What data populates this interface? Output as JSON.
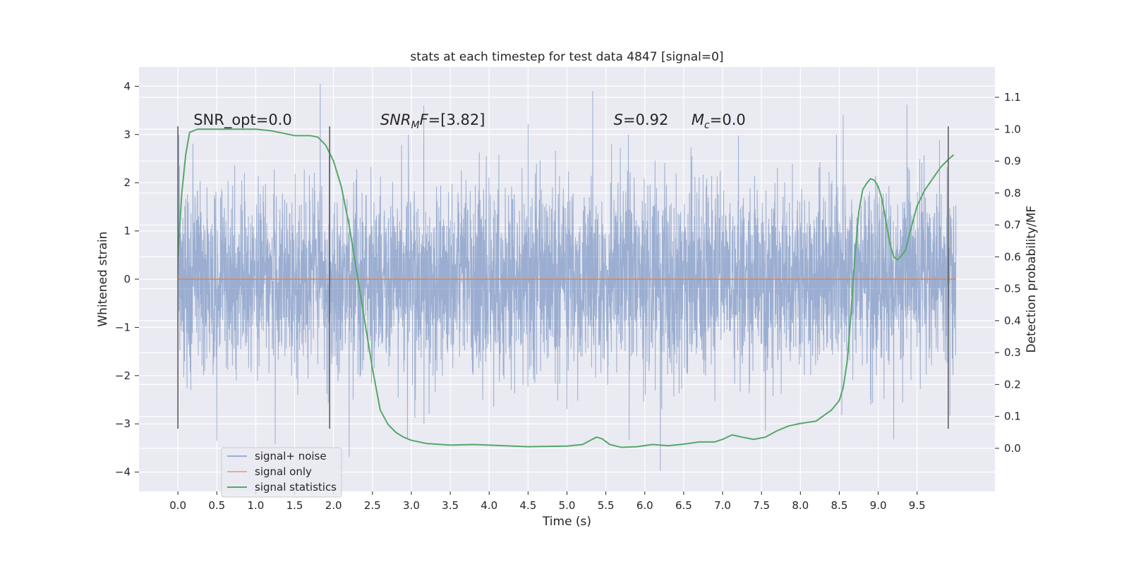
{
  "chart_data": {
    "type": "line",
    "title": "stats at each timestep for test data 4847 [signal=0]",
    "xlabel": "Time (s)",
    "ylabel": "Whitened strain",
    "y2label": "Detection probability/MF",
    "xlim": [
      -0.5,
      10.5
    ],
    "ylim": [
      -4.4,
      4.4
    ],
    "y2lim": [
      -0.135,
      1.195
    ],
    "x_ticks": [
      0.0,
      0.5,
      1.0,
      1.5,
      2.0,
      2.5,
      3.0,
      3.5,
      4.0,
      4.5,
      5.0,
      5.5,
      6.0,
      6.5,
      7.0,
      7.5,
      8.0,
      8.5,
      9.0,
      9.5
    ],
    "x_tick_labels": [
      "0.0",
      "0.5",
      "1.0",
      "1.5",
      "2.0",
      "2.5",
      "3.0",
      "3.5",
      "4.0",
      "4.5",
      "5.0",
      "5.5",
      "6.0",
      "6.5",
      "7.0",
      "7.5",
      "8.0",
      "8.5",
      "9.0",
      "9.5"
    ],
    "y_ticks": [
      -4,
      -3,
      -2,
      -1,
      0,
      1,
      2,
      3,
      4
    ],
    "y_tick_labels": [
      "−4",
      "−3",
      "−2",
      "−1",
      "0",
      "1",
      "2",
      "3",
      "4"
    ],
    "y2_ticks": [
      0.0,
      0.1,
      0.2,
      0.3,
      0.4,
      0.5,
      0.6,
      0.7,
      0.8,
      0.9,
      1.0,
      1.1
    ],
    "y2_tick_labels": [
      "0.0",
      "0.1",
      "0.2",
      "0.3",
      "0.4",
      "0.5",
      "0.6",
      "0.7",
      "0.8",
      "0.9",
      "1.0",
      "1.1"
    ],
    "grid": true,
    "legend_position": "lower-left",
    "annotations": [
      {
        "parts": [
          {
            "t": "SNR_opt=0.0",
            "s": "normal"
          }
        ],
        "x": 0.2,
        "y": 3.2
      },
      {
        "parts": [
          {
            "t": "SNR",
            "s": "italic"
          },
          {
            "t": "M",
            "s": "sub"
          },
          {
            "t": "F",
            "s": "italic"
          },
          {
            "t": "=[3.82]",
            "s": "normal"
          }
        ],
        "x": 2.6,
        "y": 3.2
      },
      {
        "parts": [
          {
            "t": "S",
            "s": "italic"
          },
          {
            "t": "=0.92",
            "s": "normal"
          }
        ],
        "x": 5.6,
        "y": 3.2
      },
      {
        "parts": [
          {
            "t": "M",
            "s": "italic"
          },
          {
            "t": "c",
            "s": "sub"
          },
          {
            "t": "=0.0",
            "s": "normal"
          }
        ],
        "x": 6.6,
        "y": 3.2
      }
    ],
    "vertical_markers": {
      "x": [
        0.0,
        1.95,
        9.9
      ],
      "y_range": [
        -3.1,
        3.17
      ],
      "color": "#555555"
    },
    "series": [
      {
        "name": "signal+ noise",
        "axis": "left",
        "color": "#4c72b0",
        "style": "noise",
        "x_range": [
          0.0,
          10.0
        ],
        "samples": 4096,
        "sigma": 1.0,
        "seed": 4847,
        "peaks": [
          {
            "x": 1.83,
            "y": 4.05
          },
          {
            "x": 5.33,
            "y": 3.9
          },
          {
            "x": 9.37,
            "y": 3.62
          },
          {
            "x": 3.16,
            "y": 3.6
          },
          {
            "x": 8.55,
            "y": 3.4
          },
          {
            "x": 4.5,
            "y": 3.22
          },
          {
            "x": 2.2,
            "y": -3.68
          },
          {
            "x": 6.2,
            "y": -3.97
          },
          {
            "x": 1.25,
            "y": -3.42
          },
          {
            "x": 9.2,
            "y": -3.32
          },
          {
            "x": 5.8,
            "y": -3.34
          },
          {
            "x": 0.5,
            "y": -3.35
          },
          {
            "x": 2.95,
            "y": -3.3
          },
          {
            "x": 7.55,
            "y": -3.14
          }
        ]
      },
      {
        "name": "signal only",
        "axis": "left",
        "color": "#dd8452",
        "style": "line",
        "x": [
          0.0,
          10.0
        ],
        "y": [
          0.0,
          0.0
        ]
      },
      {
        "name": "signal statistics",
        "axis": "right",
        "color": "#55a868",
        "style": "line",
        "x": [
          0.0,
          0.05,
          0.1,
          0.15,
          0.25,
          0.5,
          1.0,
          1.2,
          1.5,
          1.7,
          1.8,
          1.9,
          2.0,
          2.1,
          2.2,
          2.3,
          2.4,
          2.5,
          2.6,
          2.7,
          2.8,
          2.9,
          3.0,
          3.2,
          3.5,
          3.8,
          4.0,
          4.5,
          5.0,
          5.2,
          5.3,
          5.38,
          5.45,
          5.55,
          5.7,
          5.9,
          6.1,
          6.3,
          6.5,
          6.7,
          6.9,
          7.0,
          7.12,
          7.25,
          7.4,
          7.55,
          7.7,
          7.85,
          8.0,
          8.2,
          8.4,
          8.5,
          8.55,
          8.6,
          8.65,
          8.7,
          8.75,
          8.8,
          8.85,
          8.9,
          8.95,
          9.0,
          9.05,
          9.1,
          9.15,
          9.2,
          9.25,
          9.35,
          9.4,
          9.5,
          9.6,
          9.7,
          9.8,
          9.9,
          9.97
        ],
        "y": [
          0.6,
          0.8,
          0.92,
          0.99,
          1.0,
          1.0,
          1.0,
          0.995,
          0.98,
          0.98,
          0.975,
          0.95,
          0.9,
          0.82,
          0.7,
          0.55,
          0.4,
          0.25,
          0.12,
          0.075,
          0.05,
          0.035,
          0.025,
          0.015,
          0.01,
          0.012,
          0.01,
          0.005,
          0.007,
          0.012,
          0.025,
          0.035,
          0.03,
          0.012,
          0.003,
          0.005,
          0.012,
          0.008,
          0.013,
          0.02,
          0.02,
          0.028,
          0.042,
          0.035,
          0.028,
          0.035,
          0.055,
          0.07,
          0.078,
          0.085,
          0.12,
          0.15,
          0.19,
          0.27,
          0.42,
          0.6,
          0.74,
          0.81,
          0.83,
          0.845,
          0.84,
          0.82,
          0.78,
          0.71,
          0.64,
          0.6,
          0.59,
          0.62,
          0.67,
          0.76,
          0.81,
          0.845,
          0.88,
          0.905,
          0.92
        ]
      }
    ]
  }
}
